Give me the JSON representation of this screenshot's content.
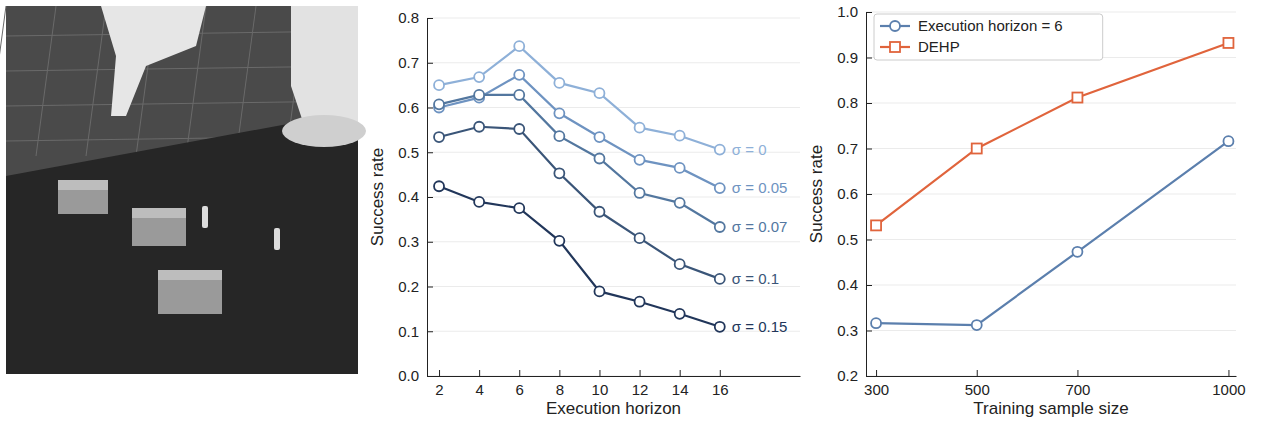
{
  "chart_data": [
    {
      "type": "line",
      "xlabel": "Execution horizon",
      "ylabel": "Success rate",
      "x": [
        2,
        4,
        6,
        8,
        10,
        12,
        14,
        16
      ],
      "xlim": [
        1.4,
        20
      ],
      "xticks": [
        2,
        4,
        6,
        8,
        10,
        12,
        14,
        16
      ],
      "ylim": [
        0,
        0.8
      ],
      "yticks": [
        {
          "value": 0,
          "label": "0.0"
        },
        0.1,
        0.2,
        0.3,
        0.4,
        0.5,
        0.6,
        0.7,
        0.8
      ],
      "grid": true,
      "marker": "circle",
      "series": [
        {
          "name": "σ = 0",
          "color": "#8eb0d8",
          "values": [
            0.65,
            0.668,
            0.737,
            0.655,
            0.632,
            0.555,
            0.537,
            0.506
          ]
        },
        {
          "name": "σ = 0.05",
          "color": "#6e93c1",
          "values": [
            0.6,
            0.622,
            0.673,
            0.587,
            0.534,
            0.483,
            0.465,
            0.42
          ]
        },
        {
          "name": "σ = 0.07",
          "color": "#53779f",
          "values": [
            0.607,
            0.628,
            0.628,
            0.536,
            0.486,
            0.409,
            0.387,
            0.333
          ]
        },
        {
          "name": "σ = 0.1",
          "color": "#3a5578",
          "values": [
            0.534,
            0.557,
            0.552,
            0.453,
            0.367,
            0.308,
            0.25,
            0.217
          ]
        },
        {
          "name": "σ = 0.15",
          "color": "#21365a",
          "values": [
            0.424,
            0.389,
            0.375,
            0.302,
            0.189,
            0.166,
            0.139,
            0.11
          ]
        }
      ]
    },
    {
      "type": "line",
      "xlabel": "Training sample size",
      "ylabel": "Success rate",
      "x": [
        300,
        500,
        700,
        1000
      ],
      "xlim": [
        280,
        1015
      ],
      "xticks": [
        300,
        500,
        700,
        1000
      ],
      "ylim": [
        0.2,
        1.0
      ],
      "yticks": [
        0.2,
        0.3,
        0.4,
        0.5,
        0.6,
        0.7,
        0.8,
        0.9,
        {
          "value": 1,
          "label": "1.0"
        }
      ],
      "grid": true,
      "legend": "upper left",
      "series": [
        {
          "name": "Execution horizon = 6",
          "color": "#5b7fad",
          "marker": "circle",
          "values": [
            0.316,
            0.312,
            0.473,
            0.716
          ]
        },
        {
          "name": "DEHP",
          "color": "#e0643c",
          "marker": "square",
          "values": [
            0.531,
            0.7,
            0.812,
            0.932
          ]
        }
      ]
    }
  ]
}
